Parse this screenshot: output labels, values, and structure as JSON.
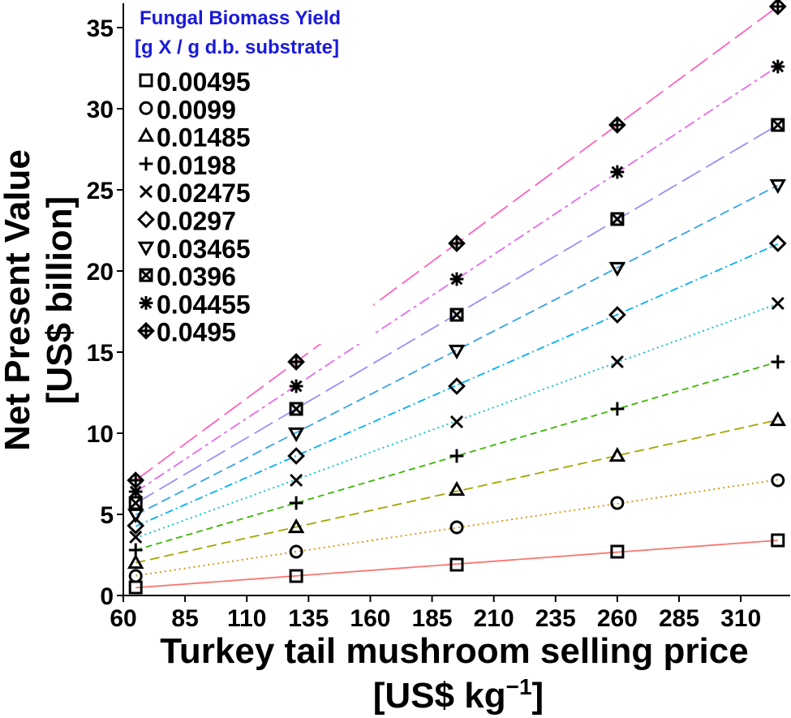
{
  "chart_data": {
    "type": "line",
    "xlabel": "Turkey tail mushroom selling price",
    "xlabel_unit_prefix": "[US$  kg",
    "xlabel_unit_exponent": "−1",
    "xlabel_unit_suffix": "]",
    "ylabel_line1": "Net Present Value",
    "ylabel_line2": "[US$  billion]",
    "xlim": [
      60,
      330
    ],
    "ylim": [
      0,
      36.5
    ],
    "xticks": [
      60,
      85,
      110,
      135,
      160,
      185,
      210,
      235,
      260,
      285,
      310
    ],
    "yticks": [
      0,
      5,
      10,
      15,
      20,
      25,
      30,
      35
    ],
    "grid": false,
    "legend": {
      "title_line1": "Fungal Biomass Yield",
      "title_line2": "[g X / g d.b. substrate]",
      "placement": "top-left",
      "title_color": "#1a1ad9"
    },
    "x": [
      65,
      130,
      195,
      260,
      325
    ],
    "series": [
      {
        "name": "0.00495",
        "marker": "square",
        "color": "#f8766d",
        "dash": "solid",
        "values": [
          0.5,
          1.2,
          1.9,
          2.7,
          3.4
        ]
      },
      {
        "name": "0.0099",
        "marker": "circle",
        "color": "#d89000",
        "dash": "dotted",
        "values": [
          1.2,
          2.7,
          4.2,
          5.7,
          7.1
        ]
      },
      {
        "name": "0.01485",
        "marker": "triangle-up",
        "color": "#a3a500",
        "dash": "dashed-long",
        "values": [
          2.0,
          4.2,
          6.5,
          8.6,
          10.8
        ]
      },
      {
        "name": "0.0198",
        "marker": "plus",
        "color": "#39b600",
        "dash": "dashed",
        "values": [
          2.8,
          5.7,
          8.6,
          11.5,
          14.4
        ]
      },
      {
        "name": "0.02475",
        "marker": "cross",
        "color": "#00bfc4",
        "dash": "dotted",
        "values": [
          3.6,
          7.1,
          10.7,
          14.4,
          18.0
        ]
      },
      {
        "name": "0.0297",
        "marker": "diamond",
        "color": "#00b0f6",
        "dash": "dashdot",
        "values": [
          4.3,
          8.6,
          12.9,
          17.3,
          21.7
        ]
      },
      {
        "name": "0.03465",
        "marker": "triangle-down",
        "color": "#35a2e8",
        "dash": "dashed-long",
        "values": [
          5.0,
          10.0,
          15.1,
          20.2,
          25.3
        ]
      },
      {
        "name": "0.0396",
        "marker": "square-cross",
        "color": "#9590ff",
        "dash": "longdash",
        "values": [
          5.7,
          11.5,
          17.3,
          23.2,
          29.0
        ]
      },
      {
        "name": "0.04455",
        "marker": "asterisk",
        "color": "#e76bf3",
        "dash": "twodash",
        "values": [
          6.4,
          12.9,
          19.5,
          26.1,
          32.6
        ]
      },
      {
        "name": "0.0495",
        "marker": "diamond-plus",
        "color": "#ff62bc",
        "dash": "longdash",
        "values": [
          7.1,
          14.4,
          21.7,
          29.0,
          36.3
        ]
      }
    ]
  }
}
